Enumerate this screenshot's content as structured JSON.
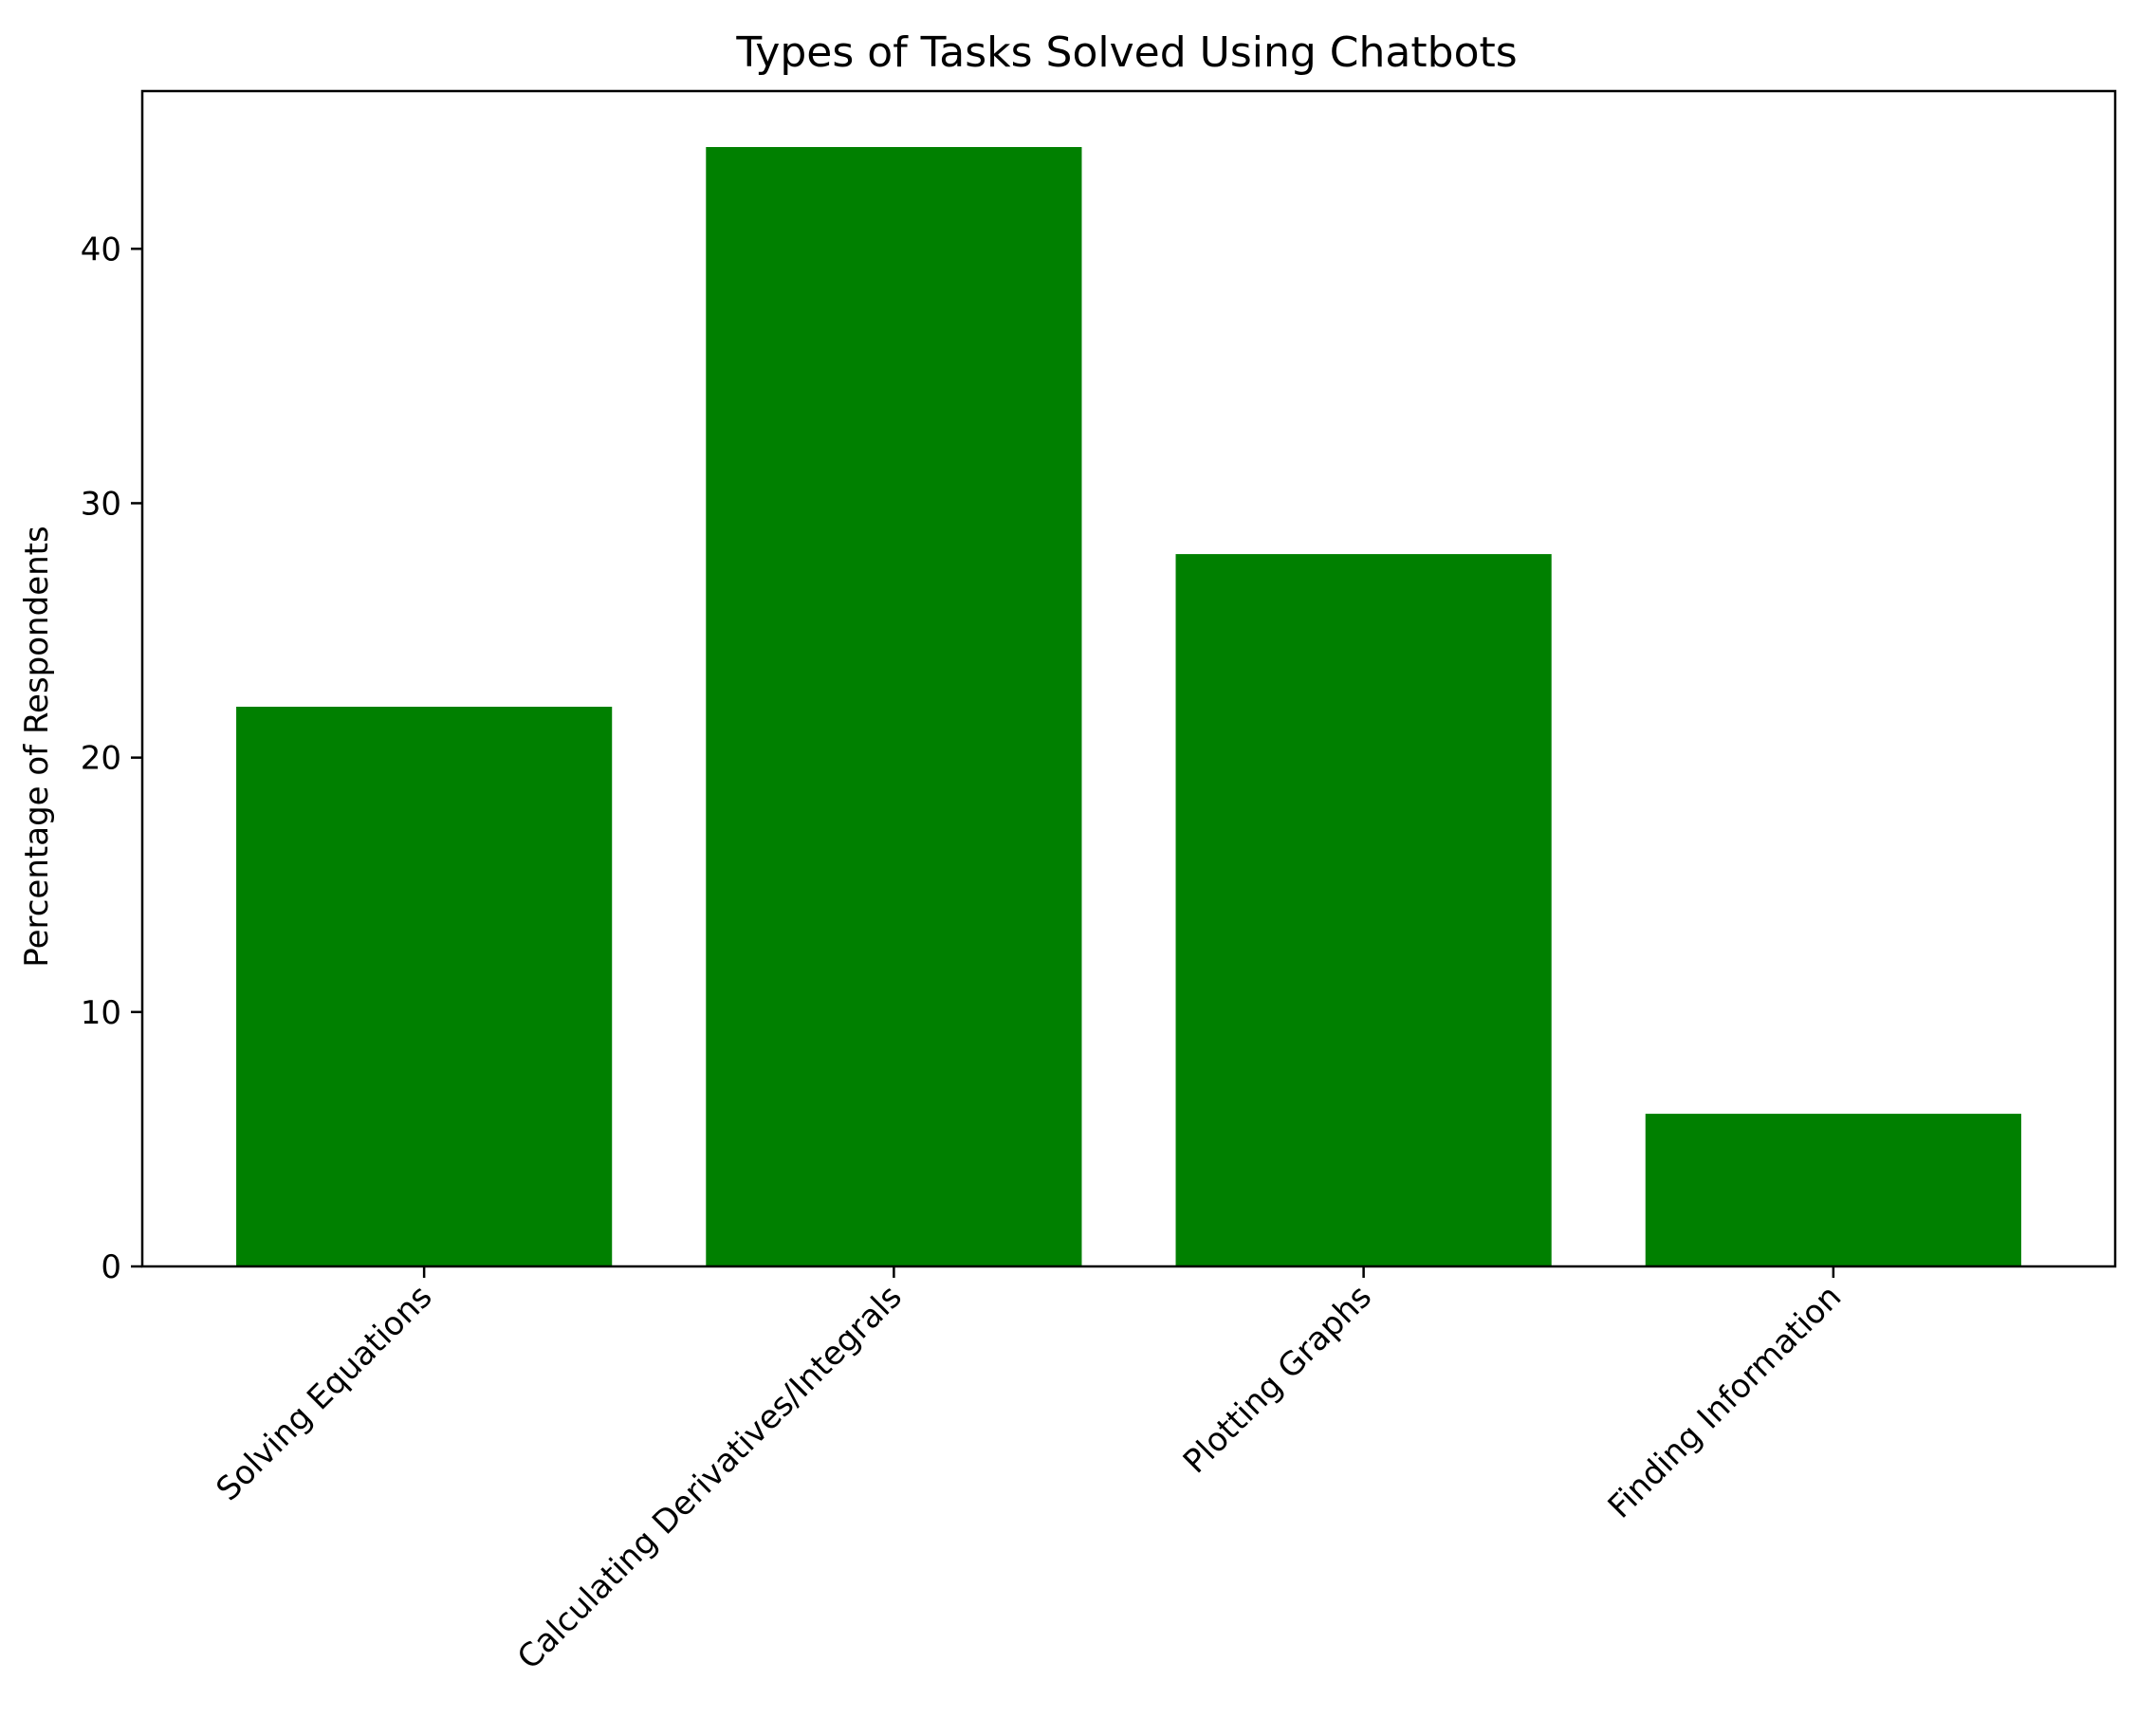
{
  "chart_data": {
    "type": "bar",
    "title": "Types of Tasks Solved Using Chatbots",
    "xlabel": "",
    "ylabel": "Percentage of Respondents",
    "categories": [
      "Solving Equations",
      "Calculating Derivatives/Integrals",
      "Plotting Graphs",
      "Finding Information"
    ],
    "values": [
      22,
      44,
      28,
      6
    ],
    "ylim": [
      0,
      46.2
    ],
    "yticks": [
      0,
      10,
      20,
      30,
      40
    ],
    "bar_color": "#008000",
    "grid": false,
    "legend": "none"
  }
}
